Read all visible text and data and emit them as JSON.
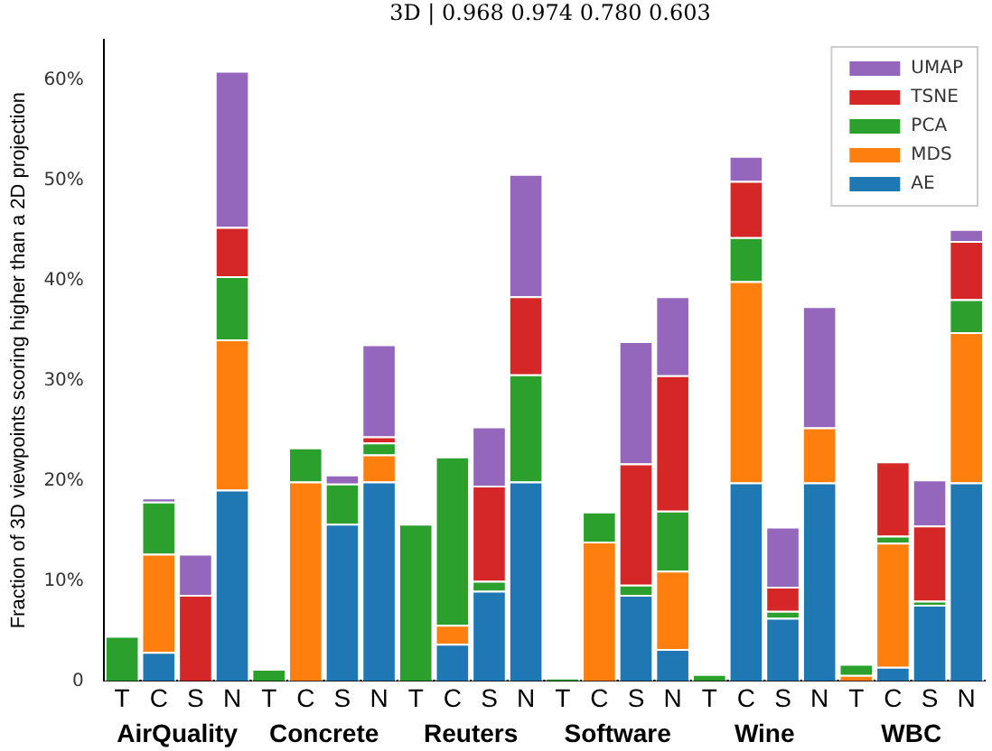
{
  "chart_data": {
    "type": "bar",
    "stacked": true,
    "ylabel": "Fraction of 3D viewpoints scoring higher than a 2D projection",
    "annotations": [
      "3D | 0.968 0.974 0.780 0.603",
      "AirQuality",
      "Concrete",
      "Reuters",
      "Software",
      "Wine",
      "WBC"
    ],
    "categories": [
      "T",
      "C",
      "S",
      "N",
      "T",
      "C",
      "S",
      "N",
      "T",
      "C",
      "S",
      "N",
      "T",
      "C",
      "S",
      "N",
      "T",
      "C",
      "S",
      "N",
      "T",
      "C",
      "S",
      "N"
    ],
    "series": [
      {
        "name": "AE",
        "color": "#1f77b4",
        "values": [
          0,
          2.9,
          0,
          19.1,
          0,
          0,
          15.7,
          19.9,
          0,
          3.7,
          9.0,
          19.9,
          0,
          0,
          8.6,
          3.2,
          0,
          19.8,
          6.3,
          19.8,
          0,
          1.4,
          7.6,
          19.8
        ]
      },
      {
        "name": "MDS",
        "color": "#ff7f0e",
        "values": [
          0,
          9.8,
          0,
          15.0,
          0,
          19.9,
          0,
          2.7,
          0,
          1.9,
          0,
          0,
          0,
          13.9,
          0,
          7.8,
          0,
          20.1,
          0,
          5.5,
          0.6,
          12.4,
          0,
          15.0
        ]
      },
      {
        "name": "PCA",
        "color": "#2ca02c",
        "values": [
          4.5,
          5.2,
          0,
          6.3,
          1.2,
          3.4,
          4.0,
          1.2,
          15.7,
          16.8,
          1.0,
          10.7,
          0.3,
          3.0,
          1.0,
          6.0,
          0.7,
          4.4,
          0.7,
          0,
          1.1,
          0.7,
          0.4,
          3.3
        ]
      },
      {
        "name": "TSNE",
        "color": "#d62728",
        "values": [
          0,
          0,
          8.6,
          4.9,
          0,
          0,
          0,
          0.6,
          0,
          0,
          9.5,
          7.8,
          0,
          0,
          12.1,
          13.5,
          0,
          5.6,
          2.4,
          0,
          0,
          7.4,
          7.5,
          5.8
        ]
      },
      {
        "name": "UMAP",
        "color": "#9467bd",
        "values": [
          0,
          0.4,
          4.1,
          15.6,
          0,
          0,
          0.9,
          9.2,
          0,
          0,
          5.9,
          12.2,
          0,
          0,
          12.2,
          7.9,
          0,
          2.5,
          6.0,
          12.1,
          0,
          0,
          4.6,
          1.2
        ]
      }
    ],
    "ylim": [
      0,
      64
    ],
    "yticks": [
      0,
      {
        "value": 10,
        "label": "10%"
      },
      {
        "value": 20,
        "label": "20%"
      },
      {
        "value": 30,
        "label": "30%"
      },
      {
        "value": 40,
        "label": "40%"
      },
      {
        "value": 50,
        "label": "50%"
      },
      {
        "value": 60,
        "label": "60%"
      }
    ],
    "grid": false,
    "legend": "top right"
  }
}
